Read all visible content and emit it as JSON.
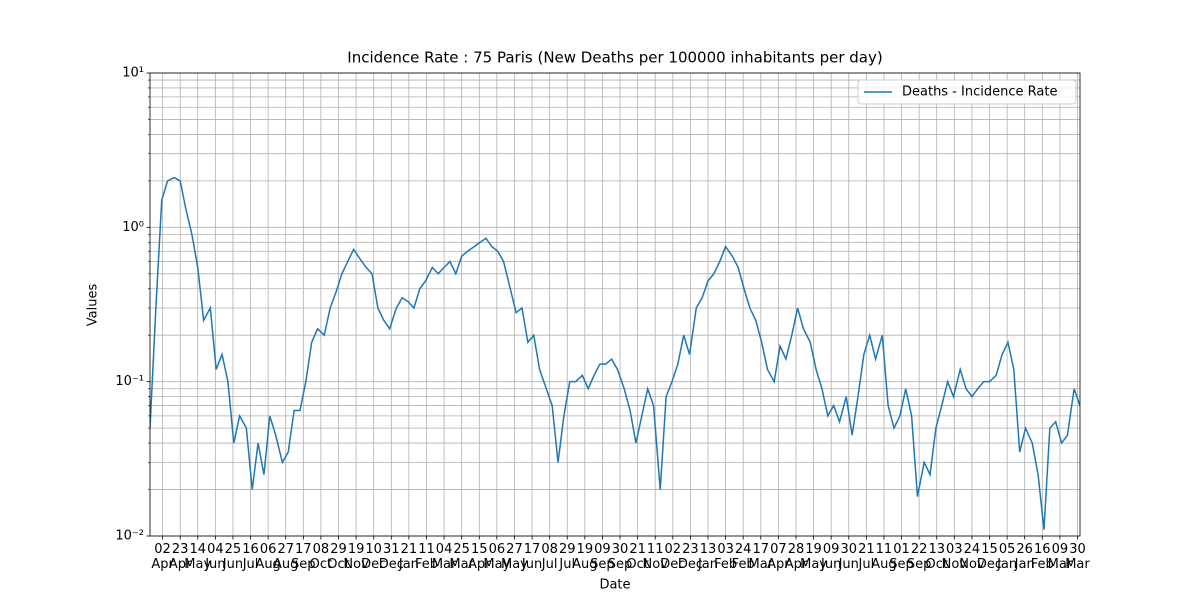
{
  "chart_data": {
    "type": "line",
    "title": "Incidence Rate : 75 Paris (New Deaths per 100000 inhabitants per day)",
    "x_label": "Date",
    "y_label": "Values",
    "y_scale": "log",
    "grid": true,
    "legend": "upper right",
    "x": [
      -15,
      -8,
      -1,
      6,
      14,
      21,
      28,
      35,
      42,
      49,
      57,
      64,
      71,
      78,
      85,
      92,
      100,
      107,
      114,
      121,
      128,
      135,
      143,
      150,
      157,
      164,
      171,
      178,
      185,
      193,
      200,
      207,
      214,
      221,
      228,
      236,
      243,
      250,
      257,
      264,
      271,
      279,
      286,
      293,
      300,
      307,
      314,
      322,
      329,
      336,
      343,
      350,
      357,
      364,
      372,
      379,
      386,
      393,
      400,
      407,
      415,
      422,
      429,
      436,
      443,
      450,
      458,
      465,
      472,
      479,
      486,
      493,
      501,
      508,
      515,
      522,
      529,
      536,
      543,
      551,
      558,
      565,
      572,
      579,
      586,
      594,
      601,
      608,
      615,
      622,
      629,
      637,
      644,
      651,
      658,
      665,
      672,
      680,
      687,
      694,
      701,
      708,
      715,
      722,
      730,
      737,
      744,
      751,
      758,
      765,
      773,
      780,
      787,
      794,
      801,
      808,
      816,
      823,
      830,
      837,
      844,
      851,
      859,
      866,
      873,
      880,
      887,
      894,
      901,
      909,
      916,
      923,
      930,
      937,
      944,
      952,
      959,
      966,
      973,
      980,
      987,
      995,
      1002,
      1009,
      1016,
      1023,
      1030,
      1038,
      1045,
      1052,
      1059,
      1066,
      1073,
      1080,
      1088,
      1095
    ],
    "series": [
      {
        "name": "Deaths - Incidence Rate",
        "color": "#1f77b4",
        "values": [
          0.05,
          0.3,
          1.5,
          2.0,
          2.1,
          2.0,
          1.3,
          0.9,
          0.55,
          0.25,
          0.3,
          0.12,
          0.15,
          0.1,
          0.04,
          0.06,
          0.05,
          0.02,
          0.04,
          0.025,
          0.06,
          0.045,
          0.03,
          0.035,
          0.065,
          0.065,
          0.1,
          0.18,
          0.22,
          0.2,
          0.3,
          0.38,
          0.5,
          0.6,
          0.72,
          0.62,
          0.55,
          0.5,
          0.3,
          0.25,
          0.22,
          0.3,
          0.35,
          0.33,
          0.3,
          0.4,
          0.45,
          0.55,
          0.5,
          0.55,
          0.6,
          0.5,
          0.65,
          0.7,
          0.75,
          0.8,
          0.85,
          0.75,
          0.7,
          0.6,
          0.4,
          0.28,
          0.3,
          0.18,
          0.2,
          0.12,
          0.09,
          0.07,
          0.03,
          0.06,
          0.1,
          0.1,
          0.11,
          0.09,
          0.11,
          0.13,
          0.13,
          0.14,
          0.12,
          0.09,
          0.065,
          0.04,
          0.06,
          0.09,
          0.07,
          0.02,
          0.08,
          0.1,
          0.13,
          0.2,
          0.15,
          0.3,
          0.35,
          0.45,
          0.5,
          0.6,
          0.75,
          0.65,
          0.55,
          0.4,
          0.3,
          0.25,
          0.18,
          0.12,
          0.1,
          0.17,
          0.14,
          0.2,
          0.3,
          0.22,
          0.18,
          0.12,
          0.09,
          0.06,
          0.07,
          0.055,
          0.08,
          0.045,
          0.08,
          0.15,
          0.2,
          0.14,
          0.2,
          0.07,
          0.05,
          0.06,
          0.09,
          0.06,
          0.018,
          0.03,
          0.025,
          0.05,
          0.07,
          0.1,
          0.08,
          0.12,
          0.09,
          0.08,
          0.09,
          0.1,
          0.1,
          0.11,
          0.15,
          0.18,
          0.12,
          0.035,
          0.05,
          0.04,
          0.025,
          0.011,
          0.05,
          0.055,
          0.04,
          0.045,
          0.09,
          0.07
        ]
      }
    ],
    "xlim": [
      -15,
      1095
    ],
    "xticks": [
      {
        "value": 0,
        "label": "02\nApr"
      },
      {
        "value": 21,
        "label": "23\nApr"
      },
      {
        "value": 42,
        "label": "14\nMay"
      },
      {
        "value": 63,
        "label": "04\nJun"
      },
      {
        "value": 84,
        "label": "25\nJun"
      },
      {
        "value": 105,
        "label": "16\nJul"
      },
      {
        "value": 126,
        "label": "06\nAug"
      },
      {
        "value": 147,
        "label": "27\nAug"
      },
      {
        "value": 168,
        "label": "17\nSep"
      },
      {
        "value": 189,
        "label": "08\nOct"
      },
      {
        "value": 210,
        "label": "29\nOct"
      },
      {
        "value": 231,
        "label": "19\nNov"
      },
      {
        "value": 252,
        "label": "10\nDec"
      },
      {
        "value": 273,
        "label": "31\nDec"
      },
      {
        "value": 294,
        "label": "21\nJan"
      },
      {
        "value": 315,
        "label": "11\nFeb"
      },
      {
        "value": 336,
        "label": "04\nMar"
      },
      {
        "value": 357,
        "label": "25\nMar"
      },
      {
        "value": 378,
        "label": "15\nApr"
      },
      {
        "value": 399,
        "label": "06\nMay"
      },
      {
        "value": 420,
        "label": "27\nMay"
      },
      {
        "value": 441,
        "label": "17\nJun"
      },
      {
        "value": 462,
        "label": "08\nJul"
      },
      {
        "value": 483,
        "label": "29\nJul"
      },
      {
        "value": 504,
        "label": "19\nAug"
      },
      {
        "value": 525,
        "label": "09\nSep"
      },
      {
        "value": 546,
        "label": "30\nSep"
      },
      {
        "value": 567,
        "label": "21\nOct"
      },
      {
        "value": 588,
        "label": "11\nNov"
      },
      {
        "value": 609,
        "label": "02\nDec"
      },
      {
        "value": 630,
        "label": "23\nDec"
      },
      {
        "value": 651,
        "label": "13\nJan"
      },
      {
        "value": 672,
        "label": "03\nFeb"
      },
      {
        "value": 693,
        "label": "24\nFeb"
      },
      {
        "value": 714,
        "label": "17\nMar"
      },
      {
        "value": 735,
        "label": "07\nApr"
      },
      {
        "value": 756,
        "label": "28\nApr"
      },
      {
        "value": 777,
        "label": "19\nMay"
      },
      {
        "value": 798,
        "label": "09\nJun"
      },
      {
        "value": 819,
        "label": "30\nJun"
      },
      {
        "value": 840,
        "label": "21\nJul"
      },
      {
        "value": 861,
        "label": "11\nAug"
      },
      {
        "value": 882,
        "label": "01\nSep"
      },
      {
        "value": 903,
        "label": "22\nSep"
      },
      {
        "value": 924,
        "label": "13\nOct"
      },
      {
        "value": 945,
        "label": "03\nNov"
      },
      {
        "value": 966,
        "label": "24\nNov"
      },
      {
        "value": 987,
        "label": "15\nDec"
      },
      {
        "value": 1008,
        "label": "05\nJan"
      },
      {
        "value": 1029,
        "label": "26\nJan"
      },
      {
        "value": 1050,
        "label": "16\nFeb"
      },
      {
        "value": 1071,
        "label": "09\nMar"
      },
      {
        "value": 1092,
        "label": "30\nMar"
      }
    ],
    "ylim": [
      0.01,
      10
    ],
    "yticks": [
      {
        "value": 0.01,
        "label": "10⁻²"
      },
      {
        "value": 0.1,
        "label": "10⁻¹"
      },
      {
        "value": 1,
        "label": "10⁰"
      },
      {
        "value": 10,
        "label": "10¹"
      }
    ],
    "yminorticks": [
      0.02,
      0.03,
      0.04,
      0.05,
      0.06,
      0.07,
      0.08,
      0.09,
      0.2,
      0.3,
      0.4,
      0.5,
      0.6,
      0.7,
      0.8,
      0.9,
      2,
      3,
      4,
      5,
      6,
      7,
      8,
      9
    ]
  }
}
